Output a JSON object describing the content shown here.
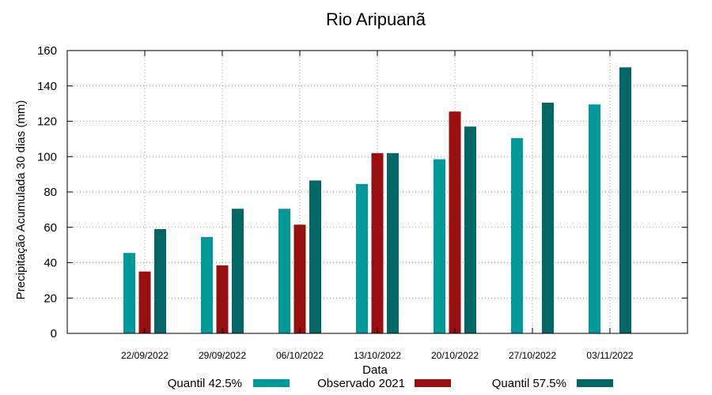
{
  "chart_data": {
    "type": "bar",
    "title": "Rio Aripuanã",
    "xlabel": "Data",
    "ylabel": "Precipitação Acumulada 30 dias (mm)",
    "ylim": [
      0,
      160
    ],
    "yticks": [
      0,
      20,
      40,
      60,
      80,
      100,
      120,
      140,
      160
    ],
    "grid": true,
    "legend_position": "bottom",
    "categories": [
      "22/09/2022",
      "29/09/2022",
      "06/10/2022",
      "13/10/2022",
      "20/10/2022",
      "27/10/2022",
      "03/11/2022"
    ],
    "series": [
      {
        "name": "Quantil 42.5%",
        "color": "#009999",
        "values": [
          45.5,
          54.5,
          70.5,
          84.5,
          98.5,
          110.5,
          129.5
        ]
      },
      {
        "name": "Observado 2021",
        "color": "#990f0f",
        "values": [
          35,
          38.5,
          61.5,
          102,
          125.5,
          null,
          null
        ]
      },
      {
        "name": "Quantil 57.5%",
        "color": "#006666",
        "values": [
          59,
          70.5,
          86.5,
          102,
          117,
          130.5,
          150.5
        ]
      }
    ]
  }
}
